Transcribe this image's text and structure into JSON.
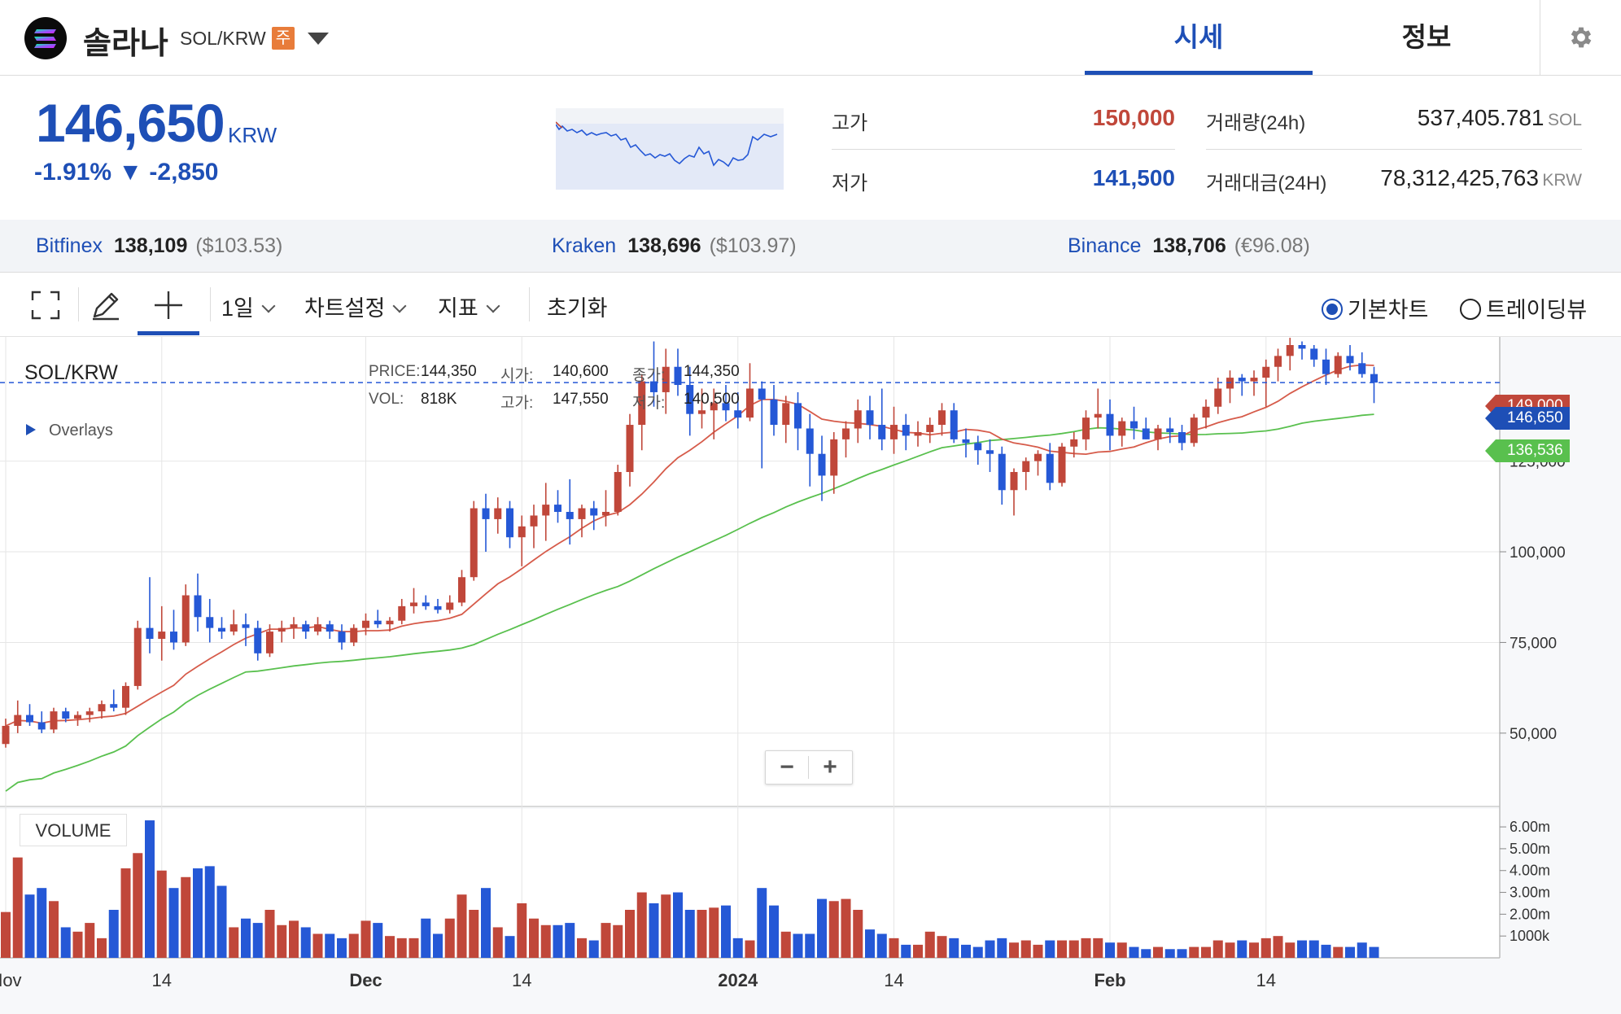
{
  "header": {
    "coin_name": "솔라나",
    "pair": "SOL/KRW",
    "badge": "주",
    "tabs": [
      {
        "label": "시세",
        "active": true
      },
      {
        "label": "정보",
        "active": false
      }
    ]
  },
  "price": {
    "current": "146,650",
    "unit": "KRW",
    "change": "-1.91% ▼ -2,850",
    "high_label": "고가",
    "high_value": "150,000",
    "low_label": "저가",
    "low_value": "141,500",
    "volume_label": "거래량(24h)",
    "volume_value": "537,405.781",
    "volume_unit": "SOL",
    "turnover_label": "거래대금(24H)",
    "turnover_value": "78,312,425,763",
    "turnover_unit": "KRW"
  },
  "exchanges": [
    {
      "name": "Bitfinex",
      "price": "138,109",
      "sub": "($103.53)"
    },
    {
      "name": "Kraken",
      "price": "138,696",
      "sub": "($103.97)"
    },
    {
      "name": "Binance",
      "price": "138,706",
      "sub": "(€96.08)"
    }
  ],
  "toolbar": {
    "interval": "1일",
    "chart_settings": "차트설정",
    "indicators": "지표",
    "reset": "초기화",
    "radio_basic": "기본차트",
    "radio_tradingview": "트레이딩뷰"
  },
  "chart_header": {
    "title": "SOL/KRW",
    "price_label": "PRICE:",
    "price_value": "144,350",
    "open_label": "시가:",
    "open_value": "140,600",
    "close_label": "종가:",
    "close_value": "144,350",
    "vol_label": "VOL:",
    "vol_value": "818K",
    "high_label": "고가:",
    "high_value": "147,550",
    "low_label": "저가:",
    "low_value": "140,500",
    "overlays": "Overlays",
    "volume_title": "VOLUME"
  },
  "price_tags": {
    "last": "146,650",
    "ma_green": "136,536",
    "hidden_red": "149,000"
  },
  "colors": {
    "up": "#c0473a",
    "down": "#2558d6",
    "accent": "#1e4fb6",
    "ma_short": "#d65b4a",
    "ma_long": "#59c04e"
  },
  "chart_data": {
    "type": "candlestick",
    "title": "SOL/KRW",
    "y_ticks": [
      125000,
      100000,
      75000,
      50000
    ],
    "y_tick_labels": [
      "125,000",
      "100,000",
      "75,000",
      "50,000"
    ],
    "y_range": [
      30000,
      157000
    ],
    "volume_ticks": [
      6000000,
      5000000,
      4000000,
      3000000,
      2000000,
      1000000
    ],
    "volume_tick_labels": [
      "6.00m",
      "5.00m",
      "4.00m",
      "3.00m",
      "2.00m",
      "1000k"
    ],
    "volume_range": [
      0,
      6600000
    ],
    "x_tick_labels": [
      {
        "label": "Nov",
        "day": 0
      },
      {
        "label": "14",
        "day": 13
      },
      {
        "label": "Dec",
        "day": 30
      },
      {
        "label": "14",
        "day": 43
      },
      {
        "label": "2024",
        "day": 61
      },
      {
        "label": "14",
        "day": 74
      },
      {
        "label": "Feb",
        "day": 92
      },
      {
        "label": "14",
        "day": 105
      }
    ],
    "last_price": 146650,
    "ohlc": [
      [
        47000,
        54000,
        46000,
        52000
      ],
      [
        52000,
        59000,
        50000,
        55000
      ],
      [
        55000,
        58000,
        52000,
        53000
      ],
      [
        53000,
        56000,
        50000,
        51000
      ],
      [
        51000,
        57000,
        50000,
        56000
      ],
      [
        56000,
        57000,
        53000,
        54000
      ],
      [
        54000,
        56000,
        52000,
        55000
      ],
      [
        55000,
        57000,
        53000,
        56000
      ],
      [
        56000,
        59000,
        54000,
        58000
      ],
      [
        58000,
        62000,
        56000,
        57000
      ],
      [
        57000,
        64000,
        55000,
        63000
      ],
      [
        63000,
        81000,
        62000,
        79000
      ],
      [
        79000,
        93000,
        72000,
        76000
      ],
      [
        76000,
        85000,
        70000,
        78000
      ],
      [
        78000,
        84000,
        73000,
        75000
      ],
      [
        75000,
        91000,
        74000,
        88000
      ],
      [
        88000,
        94000,
        78000,
        82000
      ],
      [
        82000,
        87000,
        75000,
        79000
      ],
      [
        79000,
        82000,
        76000,
        78000
      ],
      [
        78000,
        84000,
        77000,
        80000
      ],
      [
        80000,
        83000,
        74000,
        79000
      ],
      [
        79000,
        81000,
        70000,
        72000
      ],
      [
        72000,
        80000,
        71000,
        78000
      ],
      [
        78000,
        81000,
        75000,
        79000
      ],
      [
        79000,
        82000,
        76000,
        80000
      ],
      [
        80000,
        81000,
        76000,
        78000
      ],
      [
        78000,
        82000,
        77000,
        80000
      ],
      [
        80000,
        81000,
        76000,
        78000
      ],
      [
        78000,
        80000,
        73000,
        75000
      ],
      [
        75000,
        80000,
        74000,
        79000
      ],
      [
        79000,
        83000,
        77000,
        81000
      ],
      [
        81000,
        84000,
        79000,
        80000
      ],
      [
        80000,
        82000,
        78000,
        81000
      ],
      [
        81000,
        87000,
        80000,
        85000
      ],
      [
        85000,
        90000,
        83000,
        86000
      ],
      [
        86000,
        88000,
        84000,
        85000
      ],
      [
        85000,
        87000,
        83000,
        84000
      ],
      [
        84000,
        88000,
        83000,
        86000
      ],
      [
        86000,
        95000,
        85000,
        93000
      ],
      [
        93000,
        114000,
        92000,
        112000
      ],
      [
        112000,
        116000,
        100000,
        109000
      ],
      [
        109000,
        115000,
        105000,
        112000
      ],
      [
        112000,
        114000,
        101000,
        104000
      ],
      [
        104000,
        110000,
        96000,
        107000
      ],
      [
        107000,
        113000,
        101000,
        110000
      ],
      [
        110000,
        119000,
        103000,
        113000
      ],
      [
        113000,
        117000,
        108000,
        111000
      ],
      [
        111000,
        120000,
        102000,
        109000
      ],
      [
        109000,
        113000,
        104000,
        112000
      ],
      [
        112000,
        114000,
        106000,
        110000
      ],
      [
        110000,
        117000,
        107000,
        111000
      ],
      [
        111000,
        124000,
        110000,
        122000
      ],
      [
        122000,
        138000,
        118000,
        135000
      ],
      [
        135000,
        149000,
        128000,
        147000
      ],
      [
        147000,
        158000,
        140000,
        144000
      ],
      [
        144000,
        156000,
        138000,
        151000
      ],
      [
        151000,
        156000,
        143000,
        146000
      ],
      [
        146000,
        151000,
        132000,
        138000
      ],
      [
        138000,
        145000,
        134000,
        139000
      ],
      [
        139000,
        145000,
        131000,
        141000
      ],
      [
        141000,
        146000,
        136000,
        139000
      ],
      [
        139000,
        144000,
        134000,
        137000
      ],
      [
        137000,
        152000,
        136000,
        145000
      ],
      [
        145000,
        147000,
        123000,
        142000
      ],
      [
        142000,
        146000,
        132000,
        135000
      ],
      [
        135000,
        143000,
        130000,
        141000
      ],
      [
        141000,
        144000,
        128000,
        134000
      ],
      [
        134000,
        138000,
        118000,
        127000
      ],
      [
        127000,
        132000,
        114000,
        121000
      ],
      [
        121000,
        133000,
        116000,
        131000
      ],
      [
        131000,
        136000,
        126000,
        134000
      ],
      [
        134000,
        142000,
        130000,
        139000
      ],
      [
        139000,
        143000,
        131000,
        135000
      ],
      [
        135000,
        145000,
        128000,
        131000
      ],
      [
        131000,
        140000,
        127000,
        135000
      ],
      [
        135000,
        138000,
        128000,
        132000
      ],
      [
        132000,
        136000,
        129000,
        133000
      ],
      [
        133000,
        137000,
        130000,
        135000
      ],
      [
        135000,
        141000,
        132000,
        139000
      ],
      [
        139000,
        141000,
        130000,
        131000
      ],
      [
        131000,
        134000,
        126000,
        130000
      ],
      [
        130000,
        132000,
        124000,
        128000
      ],
      [
        128000,
        131000,
        122000,
        127000
      ],
      [
        127000,
        129000,
        113000,
        117000
      ],
      [
        117000,
        123000,
        110000,
        122000
      ],
      [
        122000,
        126000,
        117000,
        125000
      ],
      [
        125000,
        128000,
        121000,
        127000
      ],
      [
        127000,
        130000,
        117000,
        119000
      ],
      [
        119000,
        130000,
        118000,
        129000
      ],
      [
        129000,
        133000,
        126000,
        131000
      ],
      [
        131000,
        139000,
        128000,
        137000
      ],
      [
        137000,
        145000,
        134000,
        138000
      ],
      [
        138000,
        142000,
        128000,
        132000
      ],
      [
        132000,
        137000,
        129000,
        136000
      ],
      [
        136000,
        140000,
        131000,
        134000
      ],
      [
        134000,
        137000,
        131000,
        131000
      ],
      [
        131000,
        135000,
        128000,
        134000
      ],
      [
        134000,
        137000,
        130000,
        133000
      ],
      [
        133000,
        135000,
        128000,
        130000
      ],
      [
        130000,
        138000,
        129000,
        137000
      ],
      [
        137000,
        142000,
        134000,
        140000
      ],
      [
        140000,
        148000,
        138000,
        145000
      ],
      [
        145000,
        150000,
        141000,
        148000
      ],
      [
        148000,
        149000,
        143000,
        147000
      ],
      [
        147000,
        150000,
        143000,
        148000
      ],
      [
        148000,
        153000,
        140000,
        151000
      ],
      [
        151000,
        156000,
        147000,
        154000
      ],
      [
        154000,
        159000,
        150000,
        157000
      ],
      [
        157000,
        158000,
        153000,
        156000
      ],
      [
        156000,
        157000,
        151000,
        153000
      ],
      [
        153000,
        156000,
        146000,
        149000
      ],
      [
        149000,
        155000,
        148000,
        154000
      ],
      [
        154000,
        157000,
        150000,
        152000
      ],
      [
        152000,
        155000,
        148000,
        149000
      ],
      [
        149000,
        151000,
        141000,
        146650
      ]
    ],
    "volume": [
      2100000,
      4600000,
      2900000,
      3200000,
      2600000,
      1400000,
      1200000,
      1600000,
      900000,
      2200000,
      4100000,
      4800000,
      6300000,
      4000000,
      3200000,
      3700000,
      4100000,
      4200000,
      3300000,
      1400000,
      1800000,
      1600000,
      2200000,
      1500000,
      1700000,
      1400000,
      1100000,
      1100000,
      900000,
      1100000,
      1700000,
      1600000,
      1000000,
      900000,
      900000,
      1800000,
      1100000,
      1800000,
      2900000,
      2200000,
      3200000,
      1400000,
      1000000,
      2500000,
      1800000,
      1500000,
      1500000,
      1600000,
      900000,
      800000,
      1600000,
      1500000,
      2200000,
      3000000,
      2500000,
      2900000,
      3000000,
      2200000,
      2200000,
      2300000,
      2400000,
      900000,
      800000,
      3200000,
      2400000,
      1200000,
      1100000,
      1100000,
      2700000,
      2600000,
      2700000,
      2200000,
      1300000,
      1100000,
      900000,
      600000,
      600000,
      1200000,
      1000000,
      900000,
      600000,
      500000,
      800000,
      900000,
      700000,
      800000,
      600000,
      800000,
      800000,
      800000,
      900000,
      900000,
      700000,
      700000,
      500000,
      400000,
      500000,
      400000,
      400000,
      500000,
      500000,
      800000,
      700000,
      800000,
      700000,
      900000,
      1000000,
      700000,
      800000,
      800000,
      600000,
      500000,
      500000,
      700000,
      500000,
      500000
    ],
    "series": [
      {
        "name": "",
        "type": "line",
        "color": "#d65b4a"
      },
      {
        "name": "",
        "type": "line",
        "color": "#59c04e"
      }
    ]
  }
}
